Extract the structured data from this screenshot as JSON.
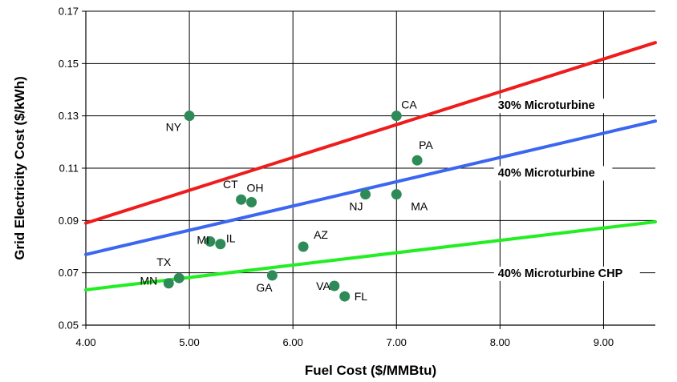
{
  "chart_data": {
    "type": "scatter",
    "title": "",
    "xlabel": "Fuel Cost ($/MMBtu)",
    "ylabel": "Grid Electricity Cost ($/kWh)",
    "xlim": [
      4.0,
      9.5
    ],
    "ylim": [
      0.05,
      0.17
    ],
    "xticks": [
      4.0,
      5.0,
      6.0,
      7.0,
      8.0,
      9.0
    ],
    "xtick_labels": [
      "4.00",
      "5.00",
      "6.00",
      "7.00",
      "8.00",
      "9.00"
    ],
    "yticks": [
      0.05,
      0.07,
      0.09,
      0.11,
      0.13,
      0.15,
      0.17
    ],
    "ytick_labels": [
      "0.05",
      "0.07",
      "0.09",
      "0.11",
      "0.13",
      "0.15",
      "0.17"
    ],
    "grid": true,
    "legend": "none",
    "lines": [
      {
        "name": "30% Microturbine",
        "color": "#ee1c1c",
        "x": [
          4.0,
          9.5
        ],
        "y": [
          0.089,
          0.158
        ]
      },
      {
        "name": "40% Microturbine",
        "color": "#3b66f0",
        "x": [
          4.0,
          9.5
        ],
        "y": [
          0.077,
          0.128
        ]
      },
      {
        "name": "40% Microturbine CHP",
        "color": "#22ee22",
        "x": [
          4.0,
          9.5
        ],
        "y": [
          0.0635,
          0.0895
        ]
      }
    ],
    "points_color": "#2e8b57",
    "points": [
      {
        "label": "NY",
        "x": 5.0,
        "y": 0.13
      },
      {
        "label": "CA",
        "x": 7.0,
        "y": 0.13
      },
      {
        "label": "PA",
        "x": 7.2,
        "y": 0.113
      },
      {
        "label": "CT",
        "x": 5.5,
        "y": 0.098
      },
      {
        "label": "OH",
        "x": 5.6,
        "y": 0.097
      },
      {
        "label": "NJ",
        "x": 6.7,
        "y": 0.1
      },
      {
        "label": "MA",
        "x": 7.0,
        "y": 0.1
      },
      {
        "label": "MI",
        "x": 5.2,
        "y": 0.082
      },
      {
        "label": "IL",
        "x": 5.3,
        "y": 0.081
      },
      {
        "label": "AZ",
        "x": 6.1,
        "y": 0.08
      },
      {
        "label": "TX",
        "x": 4.9,
        "y": 0.068
      },
      {
        "label": "MN",
        "x": 4.8,
        "y": 0.066
      },
      {
        "label": "GA",
        "x": 5.8,
        "y": 0.069
      },
      {
        "label": "VA",
        "x": 6.4,
        "y": 0.065
      },
      {
        "label": "FL",
        "x": 6.5,
        "y": 0.061
      }
    ]
  }
}
